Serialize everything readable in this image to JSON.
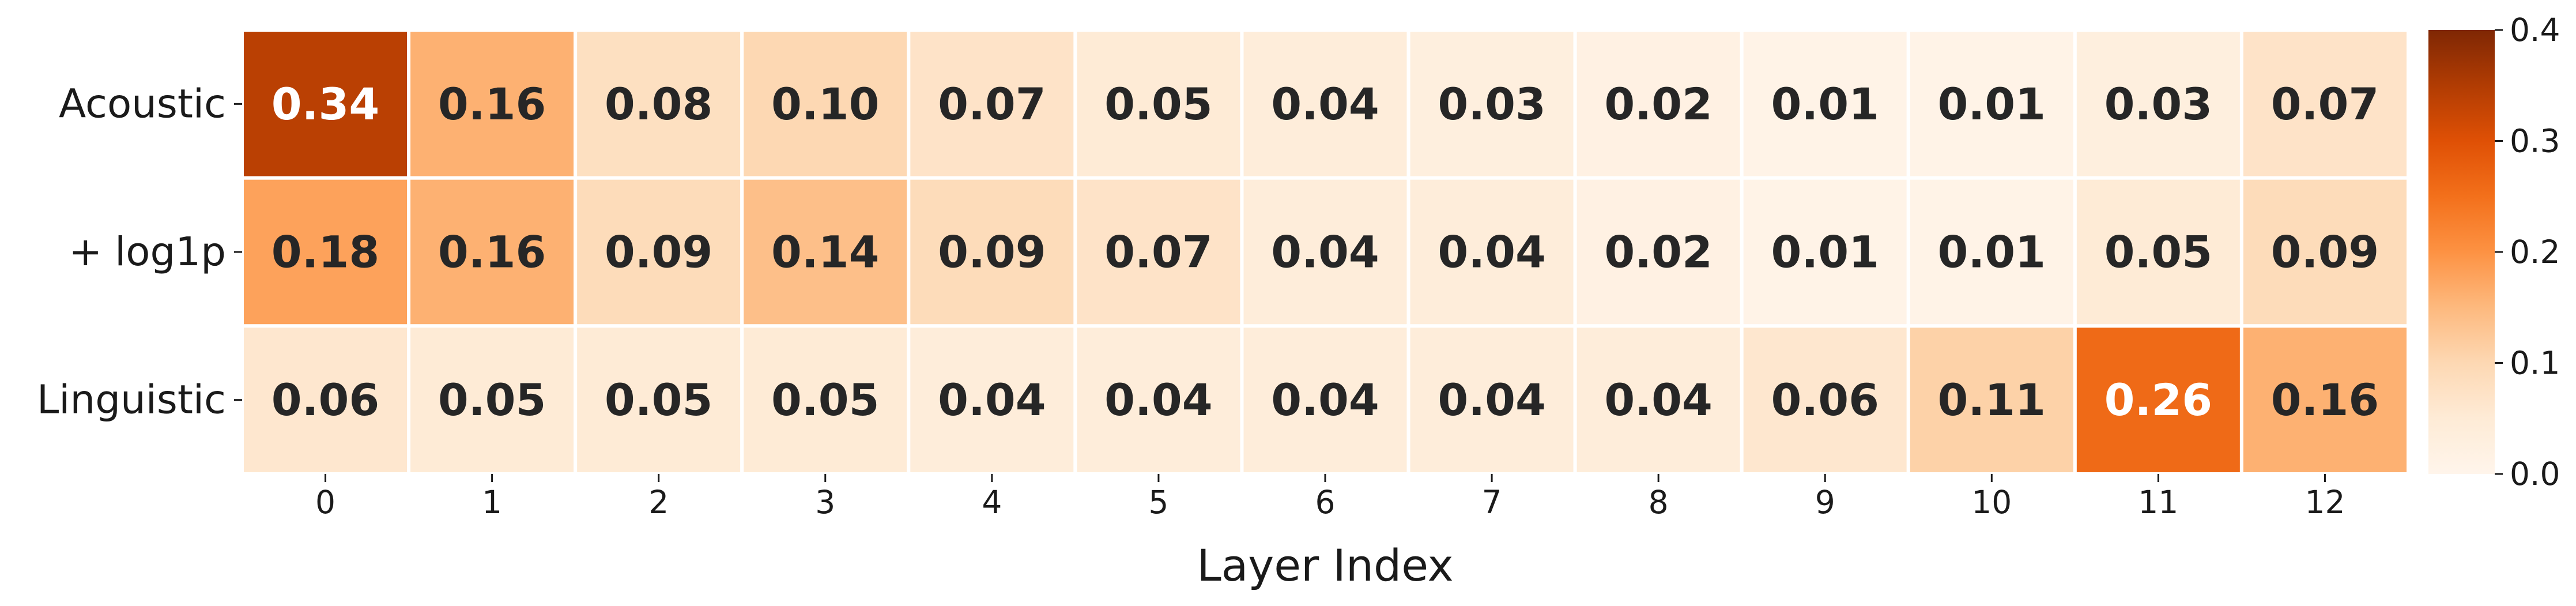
{
  "chart_data": {
    "type": "heatmap",
    "title": "",
    "xlabel": "Layer Index",
    "ylabel": "",
    "x_categories": [
      "0",
      "1",
      "2",
      "3",
      "4",
      "5",
      "6",
      "7",
      "8",
      "9",
      "10",
      "11",
      "12"
    ],
    "y_categories": [
      "Acoustic",
      "+ log1p",
      "Linguistic"
    ],
    "values": [
      [
        0.34,
        0.16,
        0.08,
        0.1,
        0.07,
        0.05,
        0.04,
        0.03,
        0.02,
        0.01,
        0.01,
        0.03,
        0.07
      ],
      [
        0.18,
        0.16,
        0.09,
        0.14,
        0.09,
        0.07,
        0.04,
        0.04,
        0.02,
        0.01,
        0.01,
        0.05,
        0.09
      ],
      [
        0.06,
        0.05,
        0.05,
        0.05,
        0.04,
        0.04,
        0.04,
        0.04,
        0.04,
        0.06,
        0.11,
        0.26,
        0.16
      ]
    ],
    "labels": [
      [
        "0.34",
        "0.16",
        "0.08",
        "0.10",
        "0.07",
        "0.05",
        "0.04",
        "0.03",
        "0.02",
        "0.01",
        "0.01",
        "0.03",
        "0.07"
      ],
      [
        "0.18",
        "0.16",
        "0.09",
        "0.14",
        "0.09",
        "0.07",
        "0.04",
        "0.04",
        "0.02",
        "0.01",
        "0.01",
        "0.05",
        "0.09"
      ],
      [
        "0.06",
        "0.05",
        "0.05",
        "0.05",
        "0.04",
        "0.04",
        "0.04",
        "0.04",
        "0.04",
        "0.06",
        "0.11",
        "0.26",
        "0.16"
      ]
    ],
    "colorscale": {
      "name": "Oranges",
      "min": 0.0,
      "max": 0.4,
      "ticks": [
        "0.0",
        "0.1",
        "0.2",
        "0.3",
        "0.4"
      ]
    },
    "grid": false,
    "legend": "colorbar-right"
  }
}
